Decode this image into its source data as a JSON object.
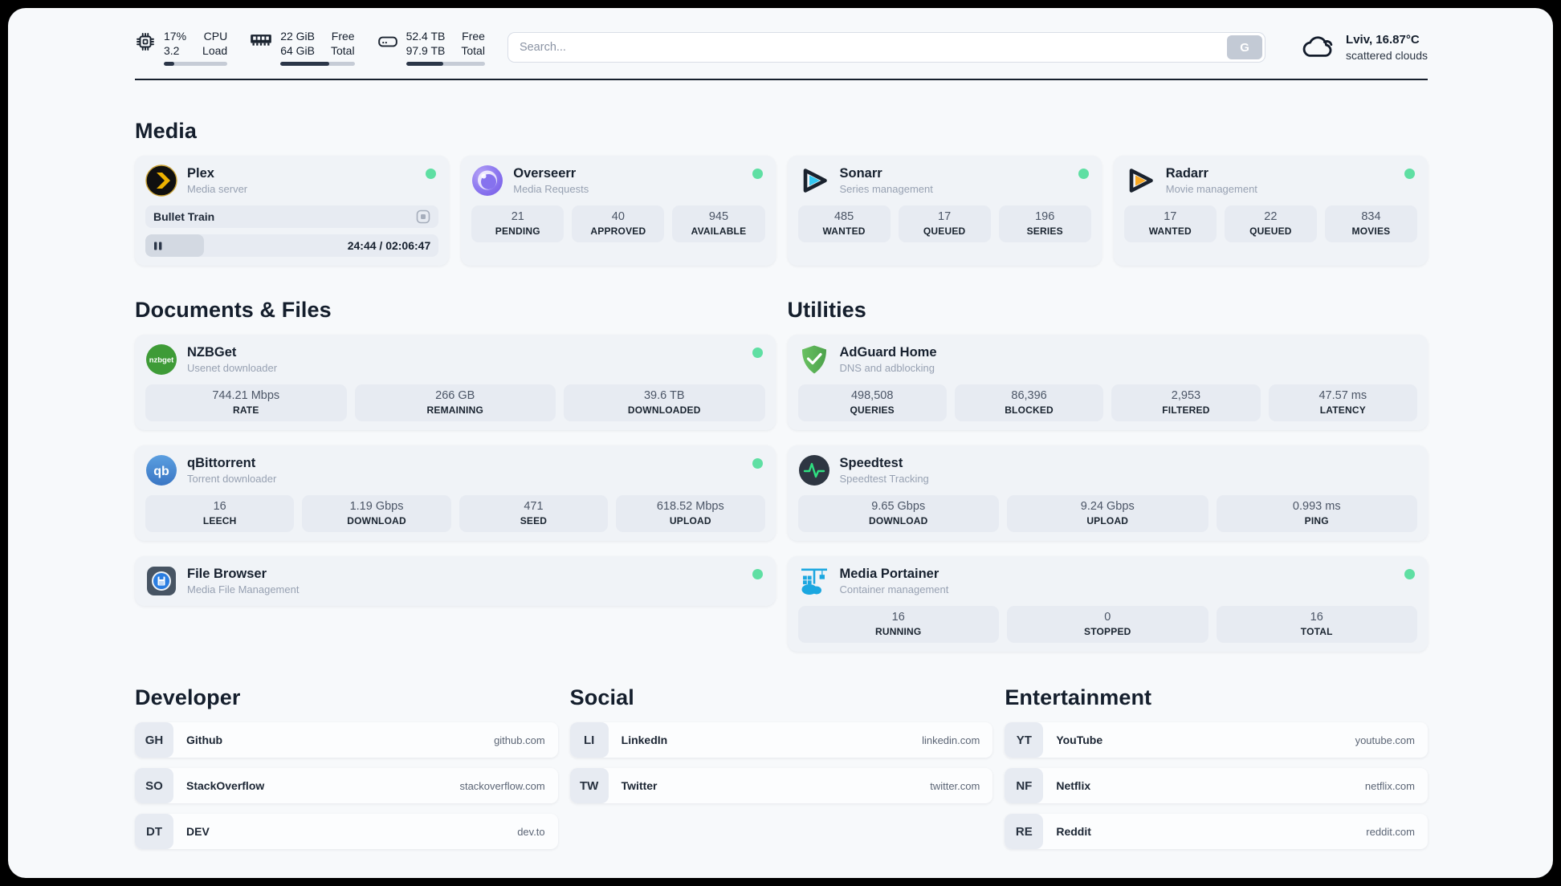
{
  "header": {
    "stats": [
      {
        "icon": "cpu-icon",
        "values": [
          "17%",
          "3.2"
        ],
        "labels": [
          "CPU",
          "Load"
        ],
        "progress": 17
      },
      {
        "icon": "ram-icon",
        "values": [
          "22 GiB",
          "64 GiB"
        ],
        "labels": [
          "Free",
          "Total"
        ],
        "progress": 66
      },
      {
        "icon": "disk-icon",
        "values": [
          "52.4 TB",
          "97.9 TB"
        ],
        "labels": [
          "Free",
          "Total"
        ],
        "progress": 47
      }
    ],
    "search": {
      "placeholder": "Search...",
      "button_label": "G"
    },
    "weather": {
      "icon": "cloud-icon",
      "title": "Lviv, 16.87°C",
      "subtitle": "scattered clouds"
    }
  },
  "sections": {
    "media": {
      "title": "Media",
      "apps": [
        {
          "id": "plex",
          "icon": "plex-icon",
          "name": "Plex",
          "desc": "Media server",
          "online": true,
          "now_playing": {
            "title": "Bullet Train",
            "time": "24:44 / 02:06:47",
            "progress": 20
          }
        },
        {
          "id": "overseerr",
          "icon": "overseerr-icon",
          "name": "Overseerr",
          "desc": "Media Requests",
          "online": true,
          "stats": [
            {
              "value": "21",
              "label": "PENDING"
            },
            {
              "value": "40",
              "label": "APPROVED"
            },
            {
              "value": "945",
              "label": "AVAILABLE"
            }
          ]
        },
        {
          "id": "sonarr",
          "icon": "sonarr-icon",
          "name": "Sonarr",
          "desc": "Series management",
          "online": true,
          "stats": [
            {
              "value": "485",
              "label": "WANTED"
            },
            {
              "value": "17",
              "label": "QUEUED"
            },
            {
              "value": "196",
              "label": "SERIES"
            }
          ]
        },
        {
          "id": "radarr",
          "icon": "radarr-icon",
          "name": "Radarr",
          "desc": "Movie management",
          "online": true,
          "stats": [
            {
              "value": "17",
              "label": "WANTED"
            },
            {
              "value": "22",
              "label": "QUEUED"
            },
            {
              "value": "834",
              "label": "MOVIES"
            }
          ]
        }
      ]
    },
    "documents": {
      "title": "Documents & Files",
      "apps": [
        {
          "id": "nzbget",
          "icon": "nzbget-icon",
          "name": "NZBGet",
          "desc": "Usenet downloader",
          "online": true,
          "stats": [
            {
              "value": "744.21 Mbps",
              "label": "RATE"
            },
            {
              "value": "266 GB",
              "label": "REMAINING"
            },
            {
              "value": "39.6 TB",
              "label": "DOWNLOADED"
            }
          ]
        },
        {
          "id": "qbittorrent",
          "icon": "qbittorrent-icon",
          "name": "qBittorrent",
          "desc": "Torrent downloader",
          "online": true,
          "stats": [
            {
              "value": "16",
              "label": "LEECH"
            },
            {
              "value": "1.19 Gbps",
              "label": "DOWNLOAD"
            },
            {
              "value": "471",
              "label": "SEED"
            },
            {
              "value": "618.52 Mbps",
              "label": "UPLOAD"
            }
          ]
        },
        {
          "id": "filebrowser",
          "icon": "filebrowser-icon",
          "name": "File Browser",
          "desc": "Media File Management",
          "online": true
        }
      ]
    },
    "utilities": {
      "title": "Utilities",
      "apps": [
        {
          "id": "adguard",
          "icon": "adguard-icon",
          "name": "AdGuard Home",
          "desc": "DNS and adblocking",
          "online": false,
          "stats": [
            {
              "value": "498,508",
              "label": "QUERIES"
            },
            {
              "value": "86,396",
              "label": "BLOCKED"
            },
            {
              "value": "2,953",
              "label": "FILTERED"
            },
            {
              "value": "47.57 ms",
              "label": "LATENCY"
            }
          ]
        },
        {
          "id": "speedtest",
          "icon": "speedtest-icon",
          "name": "Speedtest",
          "desc": "Speedtest Tracking",
          "online": false,
          "stats": [
            {
              "value": "9.65 Gbps",
              "label": "DOWNLOAD"
            },
            {
              "value": "9.24 Gbps",
              "label": "UPLOAD"
            },
            {
              "value": "0.993 ms",
              "label": "PING"
            }
          ]
        },
        {
          "id": "portainer",
          "icon": "portainer-icon",
          "name": "Media Portainer",
          "desc": "Container management",
          "online": true,
          "stats": [
            {
              "value": "16",
              "label": "RUNNING"
            },
            {
              "value": "0",
              "label": "STOPPED"
            },
            {
              "value": "16",
              "label": "TOTAL"
            }
          ]
        }
      ]
    },
    "developer": {
      "title": "Developer",
      "bookmarks": [
        {
          "abbr": "GH",
          "name": "Github",
          "url": "github.com"
        },
        {
          "abbr": "SO",
          "name": "StackOverflow",
          "url": "stackoverflow.com"
        },
        {
          "abbr": "DT",
          "name": "DEV",
          "url": "dev.to"
        }
      ]
    },
    "social": {
      "title": "Social",
      "bookmarks": [
        {
          "abbr": "LI",
          "name": "LinkedIn",
          "url": "linkedin.com"
        },
        {
          "abbr": "TW",
          "name": "Twitter",
          "url": "twitter.com"
        }
      ]
    },
    "entertainment": {
      "title": "Entertainment",
      "bookmarks": [
        {
          "abbr": "YT",
          "name": "YouTube",
          "url": "youtube.com"
        },
        {
          "abbr": "NF",
          "name": "Netflix",
          "url": "netflix.com"
        },
        {
          "abbr": "RE",
          "name": "Reddit",
          "url": "reddit.com"
        }
      ]
    }
  },
  "colors": {
    "status_online": "#5fdfa3",
    "progress_fill": "#2b3648",
    "page_background": "#f7f9fb"
  }
}
